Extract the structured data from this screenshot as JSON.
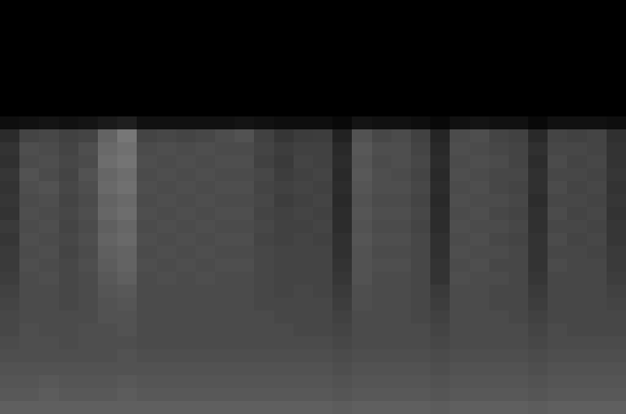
{
  "chart_data": {
    "type": "heatmap",
    "tick_labels": false,
    "color_range": [
      0,
      150
    ],
    "cells": [
      [
        0,
        0,
        0,
        0,
        0,
        0,
        0,
        0,
        0,
        0,
        0,
        0,
        0,
        0,
        0,
        0,
        0,
        0,
        0,
        0,
        0,
        0,
        0,
        0,
        0,
        0,
        0,
        0,
        0,
        0,
        0,
        0
      ],
      [
        0,
        0,
        0,
        0,
        0,
        0,
        0,
        0,
        0,
        0,
        0,
        0,
        0,
        0,
        0,
        0,
        0,
        0,
        0,
        0,
        0,
        0,
        0,
        0,
        0,
        0,
        0,
        0,
        0,
        0,
        0,
        0
      ],
      [
        0,
        0,
        0,
        0,
        0,
        0,
        0,
        0,
        0,
        0,
        0,
        0,
        0,
        0,
        0,
        0,
        0,
        0,
        0,
        0,
        0,
        0,
        0,
        0,
        0,
        0,
        0,
        0,
        0,
        0,
        0,
        0
      ],
      [
        0,
        0,
        0,
        0,
        0,
        0,
        0,
        0,
        0,
        0,
        0,
        0,
        0,
        0,
        0,
        0,
        0,
        0,
        0,
        0,
        0,
        0,
        0,
        0,
        0,
        0,
        0,
        0,
        0,
        0,
        0,
        0
      ],
      [
        0,
        0,
        0,
        0,
        0,
        0,
        0,
        0,
        0,
        0,
        0,
        0,
        0,
        0,
        0,
        0,
        0,
        0,
        0,
        0,
        0,
        0,
        0,
        0,
        0,
        0,
        0,
        0,
        0,
        0,
        0,
        0
      ],
      [
        0,
        0,
        0,
        0,
        0,
        0,
        0,
        0,
        0,
        0,
        0,
        0,
        0,
        0,
        0,
        0,
        0,
        0,
        0,
        0,
        0,
        0,
        0,
        0,
        0,
        0,
        0,
        0,
        0,
        0,
        0,
        0
      ],
      [
        0,
        0,
        0,
        0,
        0,
        0,
        0,
        0,
        0,
        0,
        0,
        0,
        0,
        0,
        0,
        0,
        0,
        0,
        0,
        0,
        0,
        0,
        0,
        0,
        0,
        0,
        0,
        0,
        0,
        0,
        0,
        0
      ],
      [
        0,
        0,
        0,
        0,
        0,
        0,
        0,
        0,
        0,
        0,
        0,
        0,
        0,
        0,
        0,
        0,
        0,
        0,
        0,
        0,
        0,
        0,
        0,
        0,
        0,
        0,
        0,
        0,
        0,
        0,
        0,
        0
      ],
      [
        0,
        0,
        0,
        0,
        0,
        0,
        0,
        0,
        0,
        0,
        0,
        0,
        0,
        0,
        0,
        0,
        0,
        0,
        0,
        0,
        0,
        0,
        0,
        0,
        0,
        0,
        0,
        0,
        0,
        0,
        0,
        0
      ],
      [
        8,
        10,
        12,
        10,
        12,
        15,
        18,
        10,
        10,
        10,
        10,
        10,
        12,
        10,
        8,
        8,
        8,
        5,
        12,
        10,
        10,
        8,
        5,
        10,
        12,
        10,
        10,
        5,
        10,
        10,
        10,
        8
      ],
      [
        25,
        40,
        42,
        38,
        40,
        58,
        70,
        40,
        42,
        40,
        42,
        45,
        48,
        38,
        32,
        35,
        36,
        20,
        48,
        42,
        44,
        38,
        22,
        44,
        46,
        40,
        38,
        24,
        40,
        38,
        40,
        28
      ],
      [
        30,
        46,
        44,
        40,
        46,
        62,
        66,
        44,
        46,
        44,
        46,
        44,
        44,
        40,
        36,
        38,
        38,
        24,
        52,
        46,
        46,
        40,
        24,
        46,
        44,
        42,
        40,
        28,
        42,
        42,
        40,
        30
      ],
      [
        28,
        44,
        46,
        42,
        44,
        64,
        68,
        46,
        44,
        46,
        44,
        46,
        46,
        38,
        34,
        40,
        38,
        26,
        50,
        44,
        46,
        42,
        26,
        44,
        46,
        44,
        40,
        26,
        44,
        40,
        42,
        30
      ],
      [
        32,
        48,
        44,
        40,
        48,
        60,
        64,
        44,
        46,
        44,
        46,
        44,
        44,
        42,
        36,
        38,
        40,
        24,
        52,
        46,
        44,
        40,
        24,
        46,
        44,
        42,
        42,
        28,
        42,
        42,
        40,
        32
      ],
      [
        30,
        46,
        48,
        42,
        46,
        62,
        66,
        46,
        44,
        46,
        44,
        46,
        46,
        40,
        38,
        40,
        38,
        26,
        50,
        46,
        46,
        42,
        26,
        44,
        46,
        42,
        40,
        28,
        44,
        40,
        42,
        30
      ],
      [
        32,
        44,
        46,
        40,
        44,
        58,
        62,
        44,
        46,
        44,
        46,
        44,
        44,
        42,
        36,
        38,
        40,
        24,
        48,
        44,
        44,
        40,
        24,
        46,
        44,
        44,
        42,
        26,
        42,
        42,
        40,
        32
      ],
      [
        30,
        46,
        44,
        42,
        46,
        60,
        64,
        46,
        44,
        46,
        44,
        46,
        46,
        40,
        38,
        40,
        38,
        26,
        50,
        46,
        46,
        42,
        26,
        44,
        46,
        42,
        40,
        28,
        44,
        40,
        42,
        30
      ],
      [
        34,
        44,
        46,
        40,
        44,
        56,
        60,
        44,
        46,
        44,
        46,
        44,
        44,
        42,
        38,
        38,
        40,
        26,
        48,
        44,
        44,
        40,
        26,
        46,
        44,
        44,
        42,
        28,
        42,
        42,
        40,
        32
      ],
      [
        32,
        46,
        44,
        42,
        46,
        58,
        62,
        46,
        44,
        46,
        44,
        46,
        46,
        40,
        38,
        40,
        38,
        28,
        50,
        46,
        46,
        42,
        28,
        44,
        46,
        42,
        40,
        30,
        44,
        40,
        42,
        32
      ],
      [
        34,
        44,
        46,
        40,
        44,
        56,
        58,
        44,
        46,
        44,
        46,
        44,
        44,
        42,
        40,
        40,
        40,
        28,
        48,
        44,
        44,
        42,
        28,
        46,
        44,
        44,
        42,
        30,
        42,
        42,
        40,
        34
      ],
      [
        34,
        46,
        44,
        42,
        46,
        54,
        58,
        46,
        44,
        46,
        44,
        46,
        46,
        42,
        40,
        40,
        40,
        30,
        48,
        46,
        46,
        42,
        30,
        44,
        46,
        42,
        42,
        30,
        44,
        42,
        42,
        34
      ],
      [
        36,
        44,
        46,
        42,
        44,
        52,
        56,
        44,
        46,
        44,
        46,
        44,
        44,
        42,
        40,
        40,
        40,
        32,
        48,
        44,
        44,
        42,
        30,
        46,
        44,
        44,
        42,
        32,
        42,
        42,
        42,
        36
      ],
      [
        38,
        44,
        44,
        42,
        44,
        50,
        52,
        44,
        44,
        44,
        44,
        44,
        44,
        42,
        40,
        42,
        40,
        34,
        46,
        44,
        44,
        42,
        34,
        44,
        44,
        42,
        42,
        34,
        42,
        42,
        42,
        38
      ],
      [
        40,
        44,
        44,
        42,
        44,
        48,
        50,
        44,
        44,
        44,
        44,
        44,
        44,
        42,
        42,
        42,
        42,
        36,
        46,
        44,
        44,
        42,
        36,
        44,
        44,
        42,
        42,
        36,
        42,
        42,
        42,
        40
      ],
      [
        42,
        44,
        44,
        44,
        44,
        48,
        48,
        44,
        44,
        44,
        44,
        44,
        44,
        44,
        42,
        42,
        42,
        38,
        44,
        44,
        44,
        42,
        38,
        44,
        44,
        44,
        42,
        38,
        42,
        42,
        42,
        42
      ],
      [
        42,
        46,
        44,
        44,
        46,
        46,
        48,
        44,
        44,
        44,
        44,
        44,
        44,
        44,
        44,
        42,
        42,
        40,
        44,
        44,
        44,
        44,
        40,
        44,
        44,
        44,
        44,
        40,
        44,
        42,
        42,
        42
      ],
      [
        44,
        46,
        46,
        44,
        46,
        46,
        46,
        44,
        44,
        44,
        44,
        44,
        44,
        44,
        44,
        44,
        44,
        42,
        44,
        44,
        44,
        44,
        42,
        44,
        44,
        44,
        44,
        42,
        44,
        44,
        44,
        44
      ],
      [
        46,
        46,
        46,
        46,
        46,
        46,
        48,
        46,
        46,
        46,
        46,
        46,
        46,
        46,
        46,
        46,
        46,
        44,
        46,
        46,
        46,
        46,
        44,
        46,
        46,
        46,
        46,
        44,
        46,
        46,
        46,
        46
      ],
      [
        48,
        48,
        48,
        48,
        48,
        48,
        48,
        48,
        48,
        48,
        48,
        48,
        48,
        48,
        48,
        48,
        48,
        46,
        48,
        48,
        48,
        48,
        46,
        48,
        48,
        48,
        48,
        46,
        48,
        48,
        48,
        48
      ],
      [
        50,
        50,
        52,
        50,
        50,
        50,
        52,
        50,
        50,
        50,
        50,
        50,
        50,
        50,
        50,
        50,
        50,
        48,
        50,
        50,
        50,
        50,
        48,
        50,
        50,
        50,
        50,
        48,
        50,
        50,
        50,
        50
      ],
      [
        52,
        52,
        54,
        52,
        52,
        52,
        54,
        52,
        52,
        52,
        52,
        52,
        52,
        52,
        52,
        52,
        52,
        50,
        52,
        52,
        52,
        52,
        50,
        52,
        52,
        52,
        52,
        50,
        52,
        52,
        52,
        52
      ],
      [
        56,
        56,
        56,
        56,
        56,
        56,
        56,
        56,
        56,
        56,
        56,
        56,
        56,
        56,
        56,
        56,
        56,
        54,
        56,
        56,
        56,
        56,
        54,
        56,
        56,
        56,
        56,
        54,
        56,
        56,
        56,
        56
      ]
    ]
  }
}
